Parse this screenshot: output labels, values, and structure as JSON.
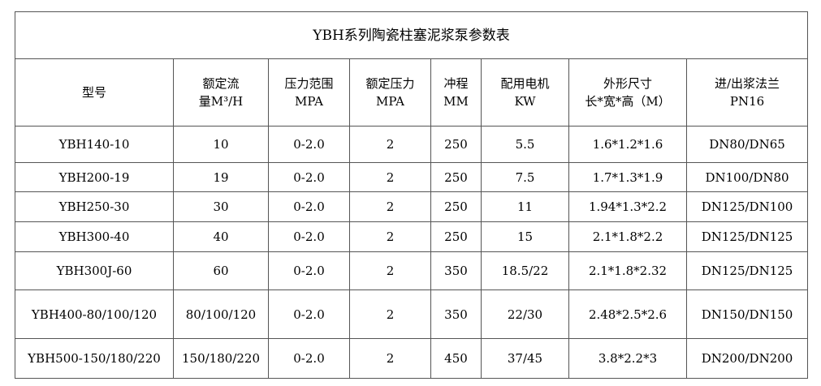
{
  "title": "YBH系列陶瓷柱塞泥浆泵参数表",
  "headers": [
    [
      "型号",
      ""
    ],
    [
      "额定流",
      "量M³/H"
    ],
    [
      "压力范围",
      "MPA"
    ],
    [
      "额定压力",
      "MPA"
    ],
    [
      "冲程",
      "MM"
    ],
    [
      "配用电机",
      "KW"
    ],
    [
      "外形尺寸",
      "长*宽*高（M）"
    ],
    [
      "进/出浆法兰",
      "PN16"
    ]
  ],
  "rows": [
    [
      "YBH140-10",
      "10",
      "0-2.0",
      "2",
      "250",
      "5.5",
      "1.6*1.2*1.6",
      "DN80/DN65"
    ],
    [
      "YBH200-19",
      "19",
      "0-2.0",
      "2",
      "250",
      "7.5",
      "1.7*1.3*1.9",
      "DN100/DN80"
    ],
    [
      "YBH250-30",
      "30",
      "0-2.0",
      "2",
      "250",
      "11",
      "1.94*1.3*2.2",
      "DN125/DN100"
    ],
    [
      "YBH300-40",
      "40",
      "0-2.0",
      "2",
      "250",
      "15",
      "2.1*1.8*2.2",
      "DN125/DN125"
    ],
    [
      "YBH300J-60",
      "60",
      "0-2.0",
      "2",
      "350",
      "18.5/22",
      "2.1*1.8*2.32",
      "DN125/DN125"
    ],
    [
      "YBH400-80/100/120",
      "80/100/120",
      "0-2.0",
      "2",
      "350",
      "22/30",
      "2.48*2.5*2.6",
      "DN150/DN150"
    ],
    [
      "YBH500-150/180/220",
      "150/180/220",
      "0-2.0",
      "2",
      "450",
      "37/45",
      "3.8*2.2*3",
      "DN200/DN200"
    ]
  ]
}
